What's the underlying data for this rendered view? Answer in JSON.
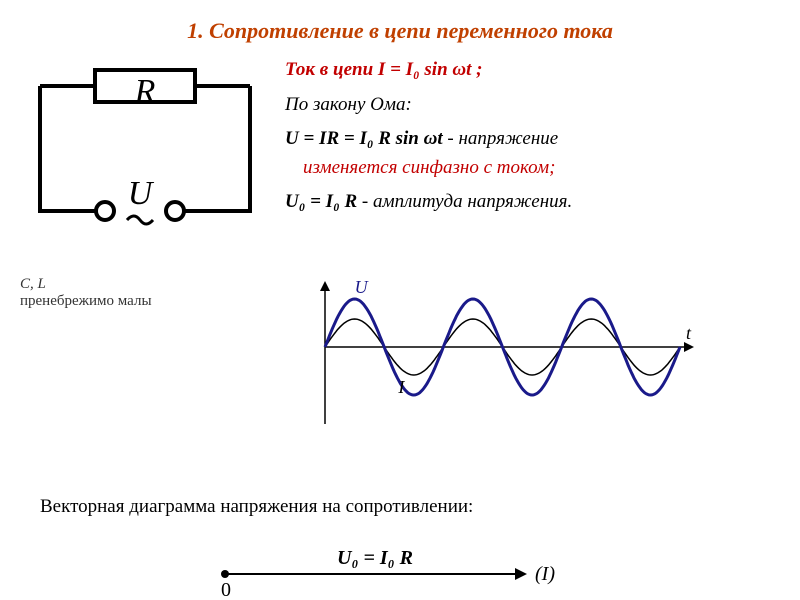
{
  "title": "1. Сопротивление в цепи переменного тока",
  "circuit": {
    "resistor_label": "R",
    "voltage_label": "U",
    "stroke": "#000000",
    "stroke_width": 4,
    "font_size": 34
  },
  "text": {
    "line1_prefix": "Ток в цепи   ",
    "line1_formula": "I = I₀ sin ωt ;",
    "line2": "По закону Ома:",
    "line3_formula": "U = IR = I₀ R sin ωt",
    "line3_suffix": "  - напряжение",
    "line4": "изменяется синфазно с током;",
    "line5_formula": "U₀ = I₀ R ",
    "line5_suffix": "- амплитуда напряжения.",
    "color_red": "#c20000",
    "color_black": "#000000",
    "font_size": 19
  },
  "note": {
    "cl": "C, L",
    "text": "пренебрежимо малы",
    "font_size": 15
  },
  "wave": {
    "label_U": "U",
    "label_I": "I",
    "axis_t": "t",
    "amplitude_U": 48,
    "amplitude_I": 28,
    "periods": 3,
    "color_U": "#1a1a8a",
    "color_I": "#000000",
    "axis_color": "#000000",
    "width_U": 3,
    "width_I": 1.5
  },
  "bottom_text": "Векторная диаграмма напряжения на сопротивлении:",
  "vector": {
    "formula": "U₀ = I₀ R",
    "origin_label": "0",
    "axis_label": "(I)",
    "radius": 4,
    "stroke": "#000000",
    "font_size": 20
  }
}
